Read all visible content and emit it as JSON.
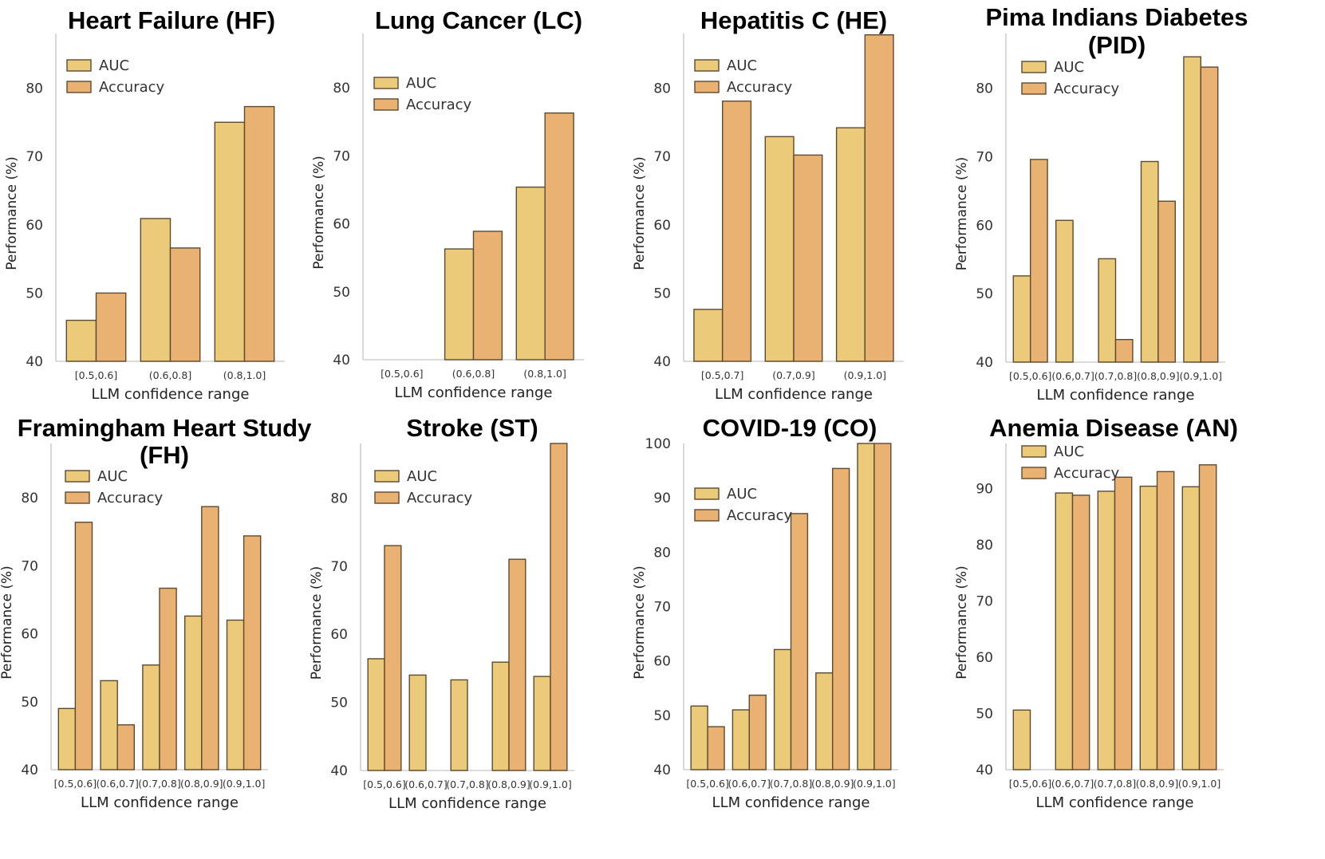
{
  "colors": {
    "auc": "#ebcb79",
    "accuracy": "#eab272",
    "edge": "#5e4a30",
    "axis": "#cfcfcf"
  },
  "legend_labels": [
    "AUC",
    "Accuracy"
  ],
  "chart_data": [
    {
      "type": "bar",
      "title_lines": [
        "Heart Failure (HF)"
      ],
      "xlabel": "LLM confidence range",
      "ylabel": "Performance (%)",
      "categories": [
        "[0.5,0.6]",
        "(0.6,0.8]",
        "(0.8,1.0]"
      ],
      "ylim": [
        40,
        88
      ],
      "yticks": [
        "40",
        "50",
        "60",
        "70",
        "80"
      ],
      "series": [
        {
          "name": "AUC",
          "values": [
            46.0,
            60.9,
            75.0
          ]
        },
        {
          "name": "Accuracy",
          "values": [
            50.0,
            56.6,
            77.3
          ]
        }
      ]
    },
    {
      "type": "bar",
      "title_lines": [
        "Lung Cancer (LC)"
      ],
      "xlabel": "LLM confidence range",
      "ylabel": "Performance (%)",
      "categories": [
        "[0.5,0.6]",
        "(0.6,0.8]",
        "(0.8,1.0]"
      ],
      "ylim": [
        40,
        88
      ],
      "yticks": [
        "40",
        "50",
        "60",
        "70",
        "80"
      ],
      "series": [
        {
          "name": "AUC",
          "values": [
            null,
            56.3,
            65.4
          ]
        },
        {
          "name": "Accuracy",
          "values": [
            null,
            58.9,
            76.3
          ]
        }
      ]
    },
    {
      "type": "bar",
      "title_lines": [
        "Hepatitis C (HE)"
      ],
      "xlabel": "LLM confidence range",
      "ylabel": "Performance (%)",
      "categories": [
        "[0.5,0.7]",
        "(0.7,0.9]",
        "(0.9,1.0]"
      ],
      "ylim": [
        40,
        88
      ],
      "yticks": [
        "40",
        "50",
        "60",
        "70",
        "80"
      ],
      "series": [
        {
          "name": "AUC",
          "values": [
            47.6,
            72.9,
            74.2
          ]
        },
        {
          "name": "Accuracy",
          "values": [
            78.1,
            70.2,
            87.8
          ]
        }
      ]
    },
    {
      "type": "bar",
      "title_lines": [
        "Pima Indians Diabetes",
        "(PID)"
      ],
      "xlabel": "LLM confidence range",
      "ylabel": "Performance (%)",
      "categories": [
        "[0.5,0.6]",
        "(0.6,0.7]",
        "(0.7,0.8]",
        "(0.8,0.9]",
        "(0.9,1.0]"
      ],
      "ylim": [
        40,
        88
      ],
      "yticks": [
        "40",
        "50",
        "60",
        "70",
        "80"
      ],
      "series": [
        {
          "name": "AUC",
          "values": [
            52.6,
            60.7,
            55.1,
            69.3,
            84.6
          ]
        },
        {
          "name": "Accuracy",
          "values": [
            69.6,
            null,
            43.3,
            63.5,
            83.1
          ]
        }
      ]
    },
    {
      "type": "bar",
      "title_lines": [
        "Framingham Heart Study",
        "(FH)"
      ],
      "xlabel": "LLM confidence range",
      "ylabel": "Performance (%)",
      "categories": [
        "[0.5,0.6]",
        "(0.6,0.7]",
        "(0.7,0.8]",
        "(0.8,0.9]",
        "(0.9,1.0]"
      ],
      "ylim": [
        40,
        88
      ],
      "yticks": [
        "40",
        "50",
        "60",
        "70",
        "80"
      ],
      "series": [
        {
          "name": "AUC",
          "values": [
            49.0,
            53.1,
            55.4,
            62.6,
            62.0
          ]
        },
        {
          "name": "Accuracy",
          "values": [
            76.4,
            46.6,
            66.7,
            78.7,
            74.4
          ]
        }
      ]
    },
    {
      "type": "bar",
      "title_lines": [
        "Stroke (ST)"
      ],
      "xlabel": "LLM confidence range",
      "ylabel": "Performance (%)",
      "categories": [
        "[0.5,0.6]",
        "(0.6,0.7]",
        "(0.7,0.8]",
        "(0.8,0.9]",
        "(0.9,1.0]"
      ],
      "ylim": [
        40,
        88
      ],
      "yticks": [
        "40",
        "50",
        "60",
        "70",
        "80"
      ],
      "series": [
        {
          "name": "AUC",
          "values": [
            56.4,
            54.0,
            53.3,
            55.9,
            53.8
          ]
        },
        {
          "name": "Accuracy",
          "values": [
            73.0,
            null,
            null,
            71.0,
            88.0
          ]
        }
      ]
    },
    {
      "type": "bar",
      "title_lines": [
        "COVID-19 (CO)"
      ],
      "xlabel": "LLM confidence range",
      "ylabel": "Performance (%)",
      "categories": [
        "[0.5,0.6]",
        "(0.6,0.7]",
        "(0.7,0.8]",
        "(0.8,0.9]",
        "(0.9,1.0]"
      ],
      "ylim": [
        40,
        100
      ],
      "yticks": [
        "40",
        "50",
        "60",
        "70",
        "80",
        "90",
        "100"
      ],
      "series": [
        {
          "name": "AUC",
          "values": [
            51.7,
            51.0,
            62.1,
            57.8,
            100.0
          ]
        },
        {
          "name": "Accuracy",
          "values": [
            47.9,
            53.7,
            87.1,
            95.4,
            100.0
          ]
        }
      ]
    },
    {
      "type": "bar",
      "title_lines": [
        "Anemia Disease (AN)"
      ],
      "xlabel": "LLM confidence range",
      "ylabel": "Performance (%)",
      "categories": [
        "[0.5,0.6]",
        "(0.6,0.7]",
        "(0.7,0.8]",
        "(0.8,0.9]",
        "(0.9,1.0]"
      ],
      "ylim": [
        40,
        98
      ],
      "yticks": [
        "40",
        "50",
        "60",
        "70",
        "80",
        "90"
      ],
      "series": [
        {
          "name": "AUC",
          "values": [
            50.6,
            89.2,
            89.5,
            90.4,
            90.3
          ]
        },
        {
          "name": "Accuracy",
          "values": [
            null,
            88.8,
            92.0,
            93.0,
            94.2
          ]
        }
      ]
    }
  ]
}
